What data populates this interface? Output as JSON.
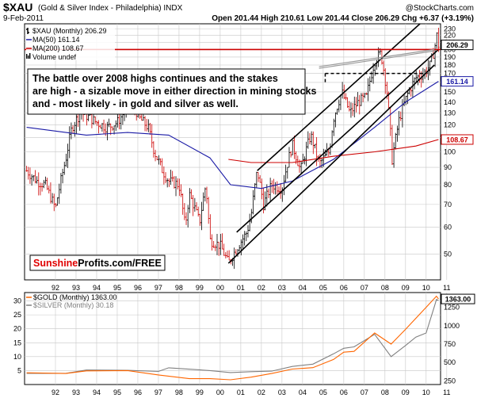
{
  "header": {
    "symbol": "$XAU",
    "name": "(Gold & Silver Index - Philadelphia) INDX",
    "watermark": "@StockCharts.com",
    "date": "9-Feb-2011",
    "ohlc": "Open 201.44  High 210.61  Low 201.44  Close 206.29  Chg +6.37 (+3.19%)"
  },
  "legend": {
    "main": "$XAU (Monthly) 206.29",
    "ma50": "MA(50) 161.14",
    "ma200": "MA(200) 108.67",
    "volume": "Volume undef",
    "gold": "$GOLD (Monthly) 1363.00",
    "silver": "$SILVER (Monthly) 30.18"
  },
  "annotation": "The battle over 2008 highs continues and the stakes are high - a sizable move in either direction in mining stocks and - most likely - in gold and silver as well.",
  "brand": {
    "part1": "Sunshine",
    "part2": "Profits.com/FREE"
  },
  "colors": {
    "up": "#000000",
    "down": "#cc0000",
    "ma50": "#1a1aa6",
    "ma200": "#cc0000",
    "gold": "#ff6600",
    "silver": "#808080",
    "grid": "#c8c8c8",
    "label_blue": "#1a1aa6"
  },
  "chart_data": [
    {
      "type": "candlestick",
      "title": "$XAU (Gold & Silver Index - Philadelphia) INDX",
      "scale": "log",
      "y_ticks": [
        50,
        60,
        70,
        80,
        90,
        100,
        110,
        120,
        130,
        140,
        150,
        160,
        170,
        180,
        190,
        200,
        210,
        220,
        230
      ],
      "x_labels": [
        "92",
        "93",
        "94",
        "95",
        "96",
        "97",
        "98",
        "99",
        "00",
        "01",
        "02",
        "03",
        "04",
        "05",
        "06",
        "07",
        "08",
        "09",
        "10",
        "11"
      ],
      "ylim": [
        42,
        238
      ],
      "value_labels": [
        {
          "text": "206.29",
          "value": 206.29,
          "color": "#000000"
        },
        {
          "text": "161.14",
          "value": 161.14,
          "color": "#1a1aa6"
        },
        {
          "text": "108.67",
          "value": 108.67,
          "color": "#cc0000"
        }
      ],
      "series": [
        {
          "name": "$XAU (Monthly)",
          "x": [
            1991.1,
            1991.6,
            1992.0,
            1992.5,
            1993.0,
            1993.3,
            1993.7,
            1994.0,
            1994.5,
            1995.0,
            1995.5,
            1996.0,
            1996.2,
            1996.6,
            1997.0,
            1997.3,
            1997.7,
            1998.0,
            1998.5,
            1998.8,
            1999.0,
            1999.5,
            1999.8,
            2000.0,
            2000.5,
            2000.9,
            2001.3,
            2001.8,
            2002.0,
            2002.3,
            2002.6,
            2003.0,
            2003.5,
            2004.0,
            2004.4,
            2004.9,
            2005.3,
            2005.8,
            2006.0,
            2006.4,
            2006.8,
            2007.2,
            2007.6,
            2008.0,
            2008.3,
            2008.6,
            2008.85,
            2009.2,
            2009.6,
            2010.0,
            2010.4,
            2010.7,
            2010.9,
            2011.05,
            2011.1
          ],
          "values": [
            88,
            82,
            80,
            68,
            95,
            118,
            130,
            128,
            122,
            118,
            122,
            135,
            140,
            125,
            118,
            100,
            88,
            82,
            80,
            60,
            75,
            62,
            80,
            55,
            53,
            47,
            52,
            58,
            65,
            88,
            70,
            80,
            78,
            105,
            88,
            112,
            92,
            100,
            125,
            150,
            130,
            140,
            145,
            185,
            195,
            150,
            95,
            125,
            148,
            165,
            170,
            180,
            200,
            225,
            206.29
          ]
        },
        {
          "name": "MA(50)",
          "x": [
            1991.1,
            1994.0,
            1996.0,
            1998.0,
            2000.0,
            2001.0,
            2002.5,
            2004.0,
            2006.0,
            2008.0,
            2009.5,
            2011.1
          ],
          "values": [
            118,
            112,
            114,
            112,
            96,
            80,
            78,
            82,
            95,
            118,
            140,
            161.14
          ]
        },
        {
          "name": "MA(200)",
          "x": [
            2000.9,
            2002.0,
            2004.0,
            2006.0,
            2008.0,
            2010.0,
            2011.1
          ],
          "values": [
            95,
            93,
            93,
            97,
            100,
            104,
            108.67
          ]
        }
      ]
    },
    {
      "type": "line",
      "title": "$GOLD (Monthly) and $SILVER (Monthly)",
      "left_axis": {
        "ticks": [
          5,
          10,
          15,
          20,
          25,
          30
        ],
        "range": [
          0,
          33
        ]
      },
      "right_axis": {
        "ticks": [
          250,
          500,
          750,
          1000,
          1250
        ],
        "range": [
          200,
          1450
        ]
      },
      "x_labels": [
        "92",
        "93",
        "94",
        "95",
        "96",
        "97",
        "98",
        "99",
        "00",
        "01",
        "02",
        "03",
        "04",
        "05",
        "06",
        "07",
        "08",
        "09",
        "10",
        "11"
      ],
      "value_labels": [
        {
          "text": "1363.00",
          "value": 1363.0
        }
      ],
      "series": [
        {
          "name": "$GOLD (Monthly)",
          "axis": "right",
          "x": [
            1991.1,
            1993.0,
            1994.0,
            1996.0,
            1997.5,
            1999.0,
            2000.0,
            2001.0,
            2002.0,
            2003.0,
            2004.0,
            2005.0,
            2006.0,
            2006.5,
            2007.0,
            2008.0,
            2008.8,
            2009.5,
            2010.0,
            2010.5,
            2011.0,
            2011.1
          ],
          "values": [
            360,
            350,
            385,
            390,
            330,
            280,
            280,
            265,
            300,
            350,
            410,
            430,
            540,
            640,
            650,
            900,
            750,
            950,
            1100,
            1250,
            1400,
            1363
          ]
        },
        {
          "name": "$SILVER (Monthly)",
          "axis": "left",
          "x": [
            1991.1,
            1993.0,
            1994.0,
            1996.0,
            1997.5,
            1998.0,
            2000.0,
            2001.0,
            2002.0,
            2003.0,
            2004.0,
            2005.0,
            2006.0,
            2006.5,
            2007.0,
            2008.0,
            2008.8,
            2009.5,
            2010.0,
            2010.5,
            2010.9,
            2011.0,
            2011.1
          ],
          "values": [
            4.0,
            4.0,
            5.2,
            5.1,
            4.7,
            6.0,
            5.0,
            4.3,
            4.6,
            4.8,
            6.5,
            7.3,
            11.0,
            13.0,
            13.5,
            18.0,
            10.0,
            14.0,
            17.0,
            18.5,
            28.0,
            30.5,
            30.18
          ]
        }
      ]
    }
  ]
}
